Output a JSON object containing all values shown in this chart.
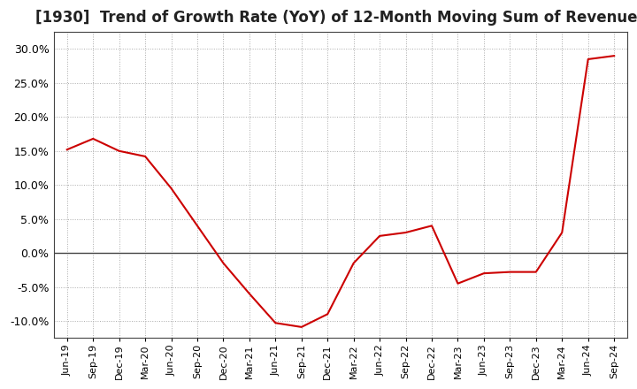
{
  "title": "[1930]  Trend of Growth Rate (YoY) of 12-Month Moving Sum of Revenues",
  "title_fontsize": 12,
  "line_color": "#cc0000",
  "background_color": "#ffffff",
  "plot_bg_color": "#ffffff",
  "grid_color": "#aaaaaa",
  "zero_line_color": "#444444",
  "x_labels": [
    "Jun-19",
    "Sep-19",
    "Dec-19",
    "Mar-20",
    "Jun-20",
    "Sep-20",
    "Dec-20",
    "Mar-21",
    "Jun-21",
    "Sep-21",
    "Dec-21",
    "Mar-22",
    "Jun-22",
    "Sep-22",
    "Dec-22",
    "Mar-23",
    "Jun-23",
    "Sep-23",
    "Dec-23",
    "Mar-24",
    "Jun-24",
    "Sep-24"
  ],
  "y_values": [
    15.2,
    16.8,
    15.0,
    14.2,
    9.5,
    4.0,
    -1.5,
    -6.0,
    -10.3,
    -10.9,
    -9.0,
    -1.5,
    2.5,
    3.0,
    4.0,
    -4.5,
    -3.0,
    -2.8,
    -2.8,
    3.0,
    28.5,
    29.0
  ],
  "ylim": [
    -12.5,
    32.5
  ],
  "yticks": [
    -10.0,
    -5.0,
    0.0,
    5.0,
    10.0,
    15.0,
    20.0,
    25.0,
    30.0
  ]
}
